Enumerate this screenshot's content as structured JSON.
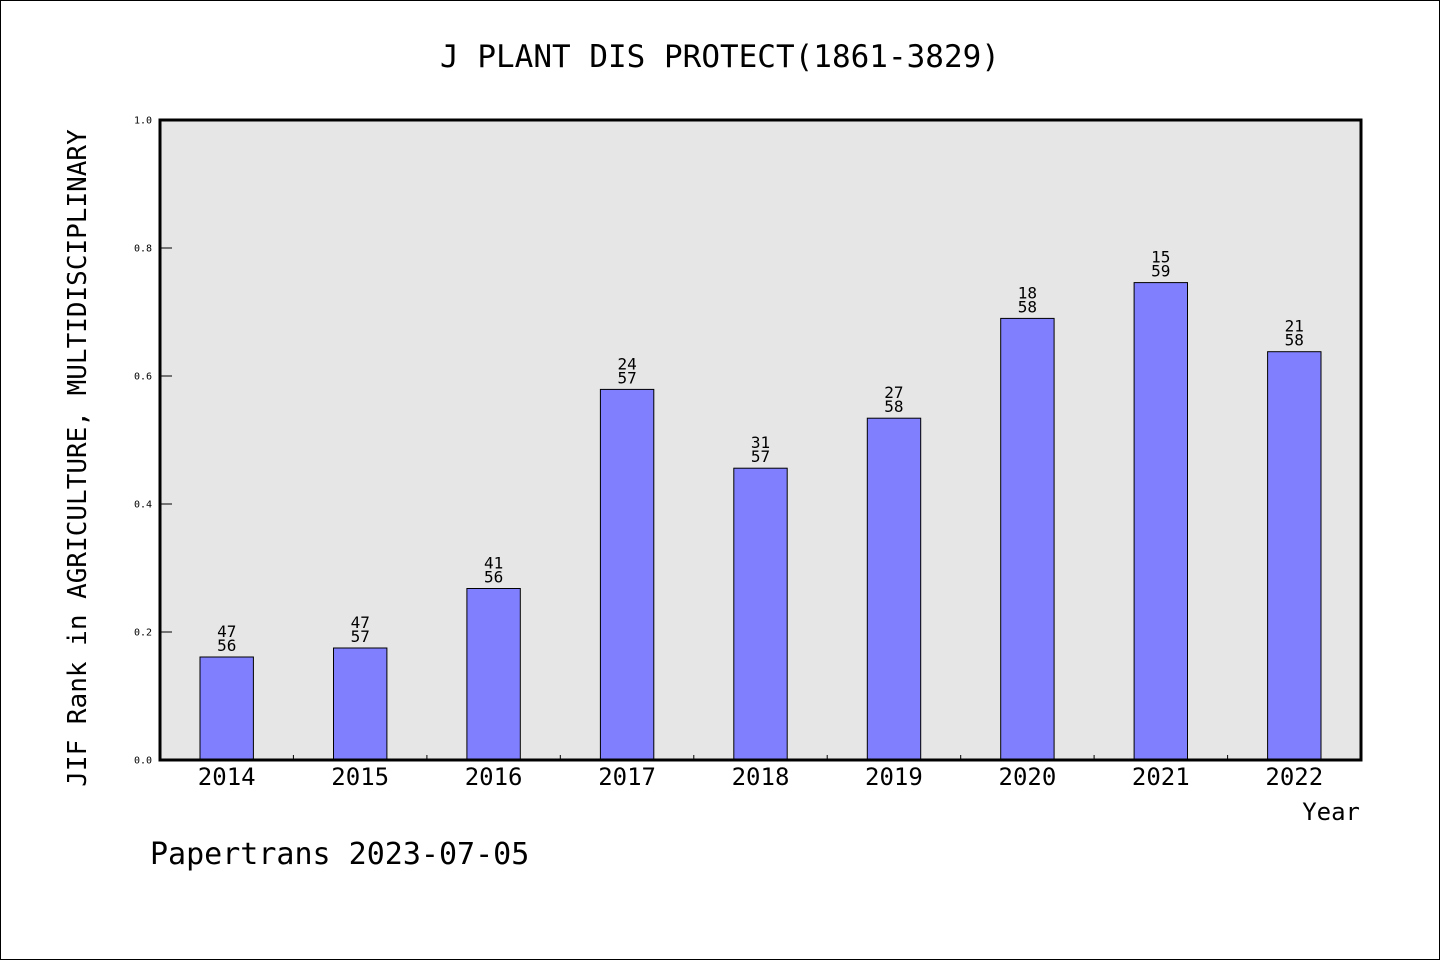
{
  "chart_data": {
    "type": "bar",
    "title": "J PLANT DIS PROTECT(1861-3829)",
    "xlabel": "Year",
    "ylabel": "JIF Rank in AGRICULTURE, MULTIDISCIPLINARY",
    "ylim": [
      0,
      1.0
    ],
    "yticks": [
      "0.0",
      "0.2",
      "0.4",
      "0.6",
      "0.8",
      "1.0"
    ],
    "categories": [
      "2014",
      "2015",
      "2016",
      "2017",
      "2018",
      "2019",
      "2020",
      "2021",
      "2022"
    ],
    "values": [
      0.161,
      0.175,
      0.268,
      0.579,
      0.456,
      0.534,
      0.69,
      0.746,
      0.638
    ],
    "rank_labels": [
      {
        "rank": "47",
        "total": "56"
      },
      {
        "rank": "47",
        "total": "57"
      },
      {
        "rank": "41",
        "total": "56"
      },
      {
        "rank": "24",
        "total": "57"
      },
      {
        "rank": "31",
        "total": "57"
      },
      {
        "rank": "27",
        "total": "58"
      },
      {
        "rank": "18",
        "total": "58"
      },
      {
        "rank": "15",
        "total": "59"
      },
      {
        "rank": "21",
        "total": "58"
      }
    ],
    "grid": false,
    "legend": "none",
    "colors": {
      "bar": "#8080ff",
      "plot_background": "#e6e6e6",
      "axis": "#000000"
    }
  },
  "footer": "Papertrans 2023-07-05"
}
